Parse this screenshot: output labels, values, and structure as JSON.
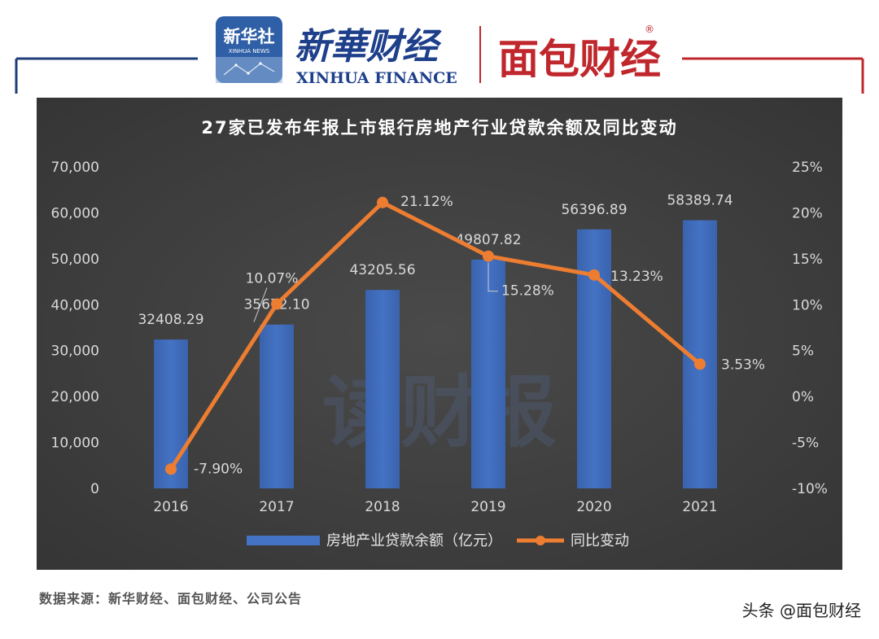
{
  "header": {
    "xinhua_news_badge_cn": "新华社",
    "xinhua_news_badge_en": "XINHUA NEWS",
    "xinhua_finance_cn": "新華财经",
    "xinhua_finance_en": "XINHUA FINANCE",
    "mianbao_logo": "面包财经",
    "registered_mark": "®"
  },
  "colors": {
    "bar": "#4472c4",
    "line": "#ed7d31",
    "panel": "#3b3b3b",
    "frame_blue": "#1f3d7a",
    "frame_red": "#c0272d",
    "logo_red": "#c0272d",
    "logo_blue": "#1e3f8a"
  },
  "watermark": "读财报",
  "source_text": "数据来源：新华财经、面包财经、公司公告",
  "credit_text": "头条 @面包财经",
  "chart_data": {
    "type": "bar+line",
    "title": "27家已发布年报上市银行房地产行业贷款余额及同比变动",
    "categories": [
      "2016",
      "2017",
      "2018",
      "2019",
      "2020",
      "2021"
    ],
    "series": [
      {
        "name": "房地产业贷款余额（亿元）",
        "type": "bar",
        "axis": "left",
        "values": [
          32408.29,
          35672.1,
          43205.56,
          49807.82,
          56396.89,
          58389.74
        ],
        "labels": [
          "32408.29",
          "35672.10",
          "43205.56",
          "49807.82",
          "56396.89",
          "58389.74"
        ]
      },
      {
        "name": "同比变动",
        "type": "line",
        "axis": "right",
        "values": [
          -7.9,
          10.07,
          21.12,
          15.28,
          13.23,
          3.53
        ],
        "labels": [
          "-7.90%",
          "10.07%",
          "21.12%",
          "15.28%",
          "13.23%",
          "3.53%"
        ]
      }
    ],
    "y_left": {
      "min": 0,
      "max": 70000,
      "ticks": [
        "0",
        "10,000",
        "20,000",
        "30,000",
        "40,000",
        "50,000",
        "60,000",
        "70,000"
      ]
    },
    "y_right": {
      "min": -10,
      "max": 25,
      "ticks": [
        "-10%",
        "-5%",
        "0%",
        "5%",
        "10%",
        "15%",
        "20%",
        "25%"
      ]
    },
    "legend_position": "bottom",
    "grid": false
  }
}
